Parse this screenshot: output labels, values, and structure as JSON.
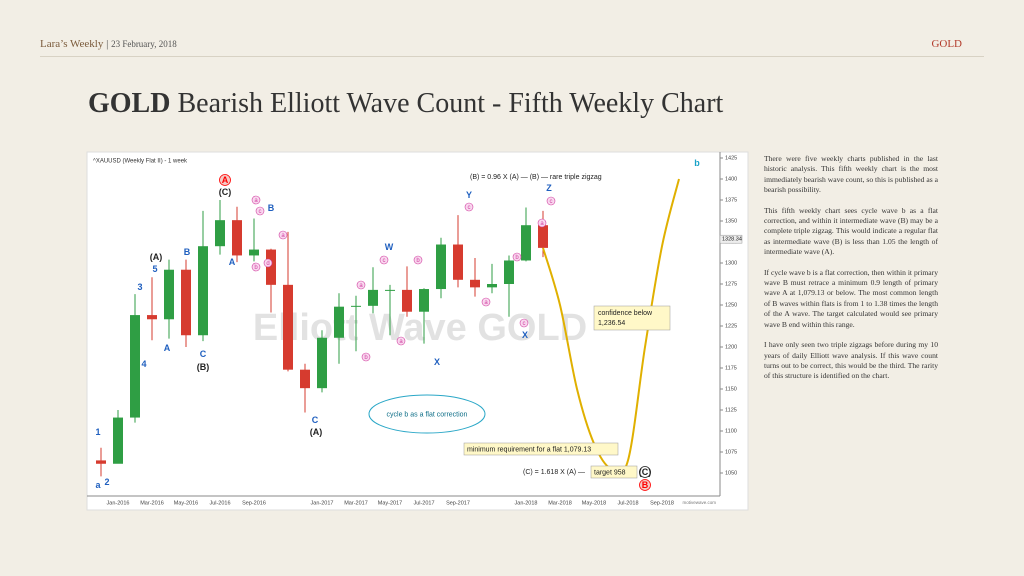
{
  "header": {
    "publication": "Lara’s Weekly",
    "separator": "|",
    "date": "23 February, 2018",
    "symbol": "GOLD"
  },
  "title": {
    "bold": "GOLD",
    "rest": "Bearish Elliott Wave Count - Fifth Weekly Chart"
  },
  "body": [
    "There were five weekly charts published in the last historic analysis. This fifth weekly chart is the most immediately bearish wave count, so this is published as a bearish possibility.",
    "This fifth weekly chart sees cycle wave b as a flat correction, and within it intermediate wave (B) may be a complete triple zigzag. This would indicate a regular flat as intermediate wave (B) is less than 1.05 the length of intermediate wave (A).",
    "If cycle wave b is a flat correction, then within it primary wave B must retrace a minimum 0.9 length of primary wave A at 1,079.13 or below. The most common length of B waves within flats is from 1 to 1.38 times the length of the A wave. The target calculated would see primary wave B end within this range.",
    "I have only seen two triple zigzags before during my 10 years of daily Elliott wave analysis. If this wave count turns out to be correct, this would be the third. The rarity of this structure is identified on the chart."
  ],
  "chart_data": {
    "type": "candlestick",
    "header": "^XAUUSD (Weekly Flat II) - 1 week",
    "categories": [
      null,
      "Jan-2016",
      null,
      "Mar-2016",
      null,
      "May-2016",
      null,
      "Jul-2016",
      null,
      "Sep-2016",
      null,
      null,
      null,
      "Jan-2017",
      null,
      "Mar-2017",
      null,
      "May-2017",
      null,
      "Jul-2017",
      null,
      "Sep-2017",
      null,
      null,
      null,
      "Jan-2018",
      null,
      "Mar-2018",
      null,
      "May-2018",
      null,
      "Jul-2018",
      null,
      "Sep-2018",
      null
    ],
    "open": [
      1065,
      1061,
      1116,
      1238,
      1233,
      1292,
      1214,
      1320,
      1351,
      1309,
      1316,
      1274,
      1173,
      1151,
      1211,
      1248,
      1249,
      1268,
      1268,
      1242,
      1269,
      1322,
      1280,
      1271,
      1275,
      1303,
      1345,
      null,
      null,
      null,
      null,
      null,
      null,
      null,
      null
    ],
    "high": [
      1080,
      1125,
      1263,
      1283,
      1304,
      1304,
      1362,
      1375,
      1367,
      1353,
      1317,
      1337,
      1180,
      1220,
      1264,
      1261,
      1295,
      1274,
      1296,
      1270,
      1330,
      1357,
      1306,
      1299,
      1309,
      1366,
      1362,
      null,
      null,
      null,
      null,
      null,
      null,
      null,
      null
    ],
    "low": [
      1046,
      1062,
      1110,
      1208,
      1210,
      1200,
      1207,
      1310,
      1301,
      1302,
      1241,
      1171,
      1122,
      1146,
      1180,
      1195,
      1240,
      1214,
      1236,
      1204,
      1258,
      1271,
      1260,
      1264,
      1236,
      1302,
      1307,
      null,
      null,
      null,
      null,
      null,
      null,
      null,
      null
    ],
    "close": [
      1061,
      1116,
      1238,
      1233,
      1292,
      1214,
      1320,
      1351,
      1309,
      1316,
      1274,
      1173,
      1151,
      1211,
      1248,
      1249,
      1268,
      1268,
      1242,
      1269,
      1322,
      1280,
      1271,
      1275,
      1303,
      1345,
      1318,
      null,
      null,
      null,
      null,
      null,
      null,
      null,
      null
    ],
    "up_color": "#2f9e44",
    "down_color": "#d63b2f",
    "projection": {
      "color": "#e0b000",
      "values": [
        null,
        null,
        null,
        null,
        null,
        null,
        null,
        null,
        null,
        null,
        null,
        null,
        null,
        null,
        null,
        null,
        null,
        null,
        null,
        null,
        null,
        null,
        null,
        null,
        null,
        null,
        1318,
        1250,
        1150,
        1085,
        1055,
        1065,
        1200,
        1320,
        1400
      ]
    },
    "last_price": 1328.34,
    "ylim": [
      1025,
      1425
    ],
    "yticks": [
      1050,
      1075,
      1100,
      1125,
      1150,
      1175,
      1200,
      1225,
      1250,
      1275,
      1300,
      1325,
      1350,
      1375,
      1400,
      1425
    ],
    "wave_labels": [
      "A",
      "(C)",
      "B",
      "A",
      "B",
      "(A)",
      "5",
      "3",
      "4",
      "1",
      "2",
      "a",
      "A",
      "C",
      "(B)",
      "C",
      "(A)",
      "W",
      "X",
      "Y",
      "Z",
      "X",
      "(C)",
      "B",
      "b",
      "a",
      "b",
      "c",
      "d",
      "a",
      "c",
      "a",
      "b",
      "a",
      "b",
      "c",
      "a",
      "b",
      "c",
      "a",
      "c"
    ],
    "annotations": [
      "(B) = 0.96 X (A) — (B) — rare triple zigzag",
      "confidence below",
      "1,236.54",
      "minimum requirement for a flat 1,079.13",
      "(C) = 1.618 X (A) —",
      "target 958",
      "cycle b as a flat correction"
    ],
    "watermark": "Elliott Wave GOLD",
    "credit": "motivewave.com"
  }
}
